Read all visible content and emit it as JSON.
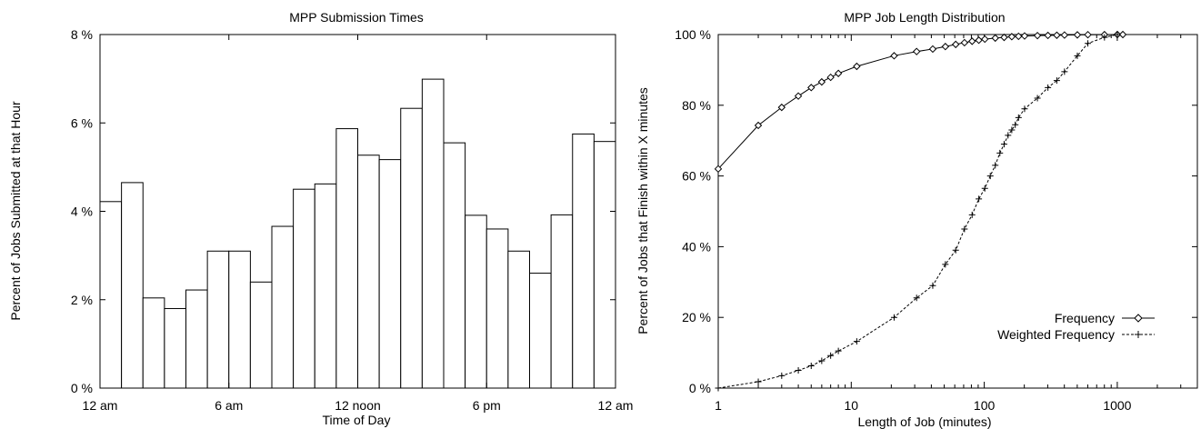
{
  "chart_data": [
    {
      "type": "bar",
      "title": "MPP Submission Times",
      "xlabel": "Time of Day",
      "ylabel": "Percent of Jobs Submitted at that Hour",
      "ylim": [
        0,
        8
      ],
      "y_ticks": [
        "0 %",
        "2 %",
        "4 %",
        "6 %",
        "8 %"
      ],
      "y_tick_values": [
        0,
        2,
        4,
        6,
        8
      ],
      "x_ticks": [
        "12 am",
        "6 am",
        "12 noon",
        "6 pm",
        "12 am"
      ],
      "x_tick_hours": [
        0,
        6,
        12,
        18,
        24
      ],
      "categories": [
        "0",
        "1",
        "2",
        "3",
        "4",
        "5",
        "6",
        "7",
        "8",
        "9",
        "10",
        "11",
        "12",
        "13",
        "14",
        "15",
        "16",
        "17",
        "18",
        "19",
        "20",
        "21",
        "22",
        "23"
      ],
      "values": [
        4.22,
        4.65,
        2.04,
        1.8,
        2.22,
        3.1,
        3.1,
        2.4,
        3.66,
        4.5,
        4.62,
        5.87,
        5.27,
        5.17,
        6.33,
        6.99,
        5.55,
        3.91,
        3.6,
        3.1,
        2.6,
        3.92,
        5.75,
        5.58
      ],
      "grid": false
    },
    {
      "type": "line",
      "title": "MPP Job Length Distribution",
      "xlabel": "Length of Job (minutes)",
      "ylabel": "Percent of Jobs that Finish within X minutes",
      "x_scale": "log",
      "xlim": [
        1,
        4000
      ],
      "ylim": [
        0,
        100
      ],
      "x_ticks": [
        "1",
        "10",
        "100",
        "1000"
      ],
      "x_tick_values": [
        1,
        10,
        100,
        1000
      ],
      "y_ticks": [
        "0 %",
        "20 %",
        "40 %",
        "60 %",
        "80 %",
        "100 %"
      ],
      "y_tick_values": [
        0,
        20,
        40,
        60,
        80,
        100
      ],
      "legend_position": "bottom-right",
      "grid": false,
      "series": [
        {
          "name": "Frequency",
          "marker": "diamond",
          "line": "solid",
          "x": [
            1,
            2,
            3,
            4,
            5,
            6,
            7,
            8,
            11,
            21,
            31,
            41,
            51,
            61,
            71,
            81,
            91,
            101,
            121,
            141,
            161,
            181,
            201,
            251,
            301,
            351,
            401,
            501,
            601,
            801,
            1001,
            1101
          ],
          "y": [
            62,
            74.3,
            79.4,
            82.6,
            85.0,
            86.6,
            87.9,
            89.0,
            91.0,
            94.0,
            95.2,
            95.9,
            96.6,
            97.2,
            97.7,
            98.1,
            98.4,
            98.7,
            99.0,
            99.2,
            99.4,
            99.5,
            99.6,
            99.7,
            99.75,
            99.8,
            99.85,
            99.9,
            99.95,
            99.97,
            100,
            100
          ]
        },
        {
          "name": "Weighted Frequency",
          "marker": "plus",
          "line": "dashed",
          "x": [
            1,
            2,
            3,
            4,
            5,
            6,
            7,
            8,
            11,
            21,
            31,
            41,
            51,
            61,
            71,
            81,
            91,
            101,
            111,
            121,
            131,
            141,
            151,
            161,
            171,
            181,
            201,
            251,
            301,
            351,
            401,
            501,
            601,
            801,
            1001
          ],
          "y": [
            0,
            1.8,
            3.5,
            5.0,
            6.3,
            7.7,
            9.2,
            10.5,
            13.2,
            20.0,
            25.5,
            29.0,
            35.0,
            39.0,
            45.0,
            49.0,
            53.5,
            56.5,
            60.0,
            63.0,
            66.5,
            69.0,
            71.5,
            73.0,
            74.5,
            76.5,
            79.0,
            82.0,
            85.0,
            87.0,
            89.5,
            94.0,
            97.5,
            99.2,
            100
          ]
        }
      ]
    }
  ]
}
